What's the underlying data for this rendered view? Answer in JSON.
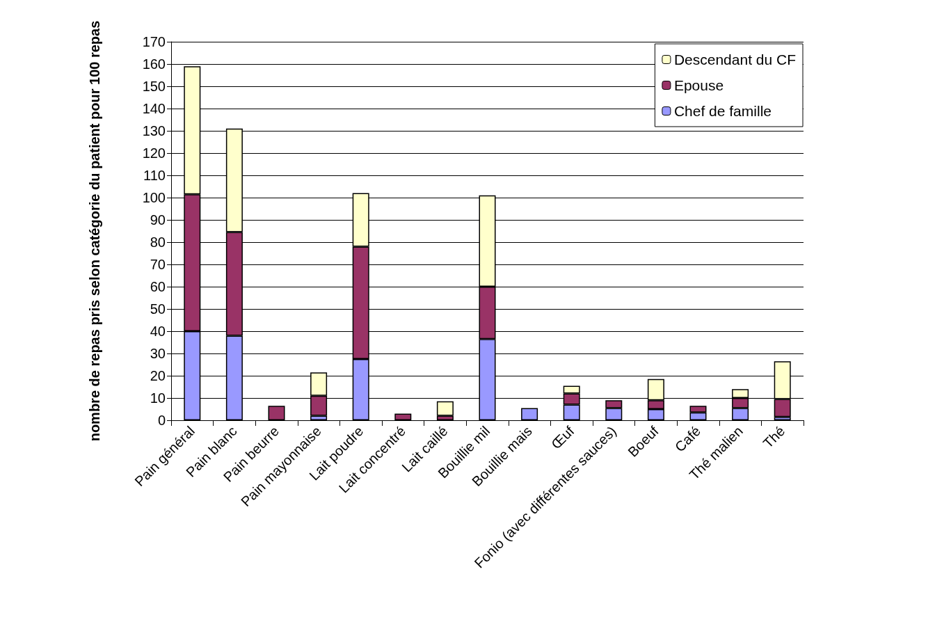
{
  "chart_data": {
    "type": "bar",
    "stacked": true,
    "ylabel": "nombre de repas pris selon catégorie du patient pour 100 repas",
    "categories": [
      "Pain général",
      "Pain blanc",
      "Pain beurre",
      "Pain mayonnaise",
      "Lait poudre",
      "Lait concentré",
      "Lait caillé",
      "Bouillie mil",
      "Bouillie mais",
      "Œuf",
      "Fonio (avec différentes sauces)",
      "Boeuf",
      "Café",
      "Thé malien",
      "Thé"
    ],
    "series": [
      {
        "name": "Chef de famille",
        "color": "#9999ff",
        "values": [
          40,
          38,
          0,
          2,
          27.5,
          0,
          0,
          36.5,
          5.5,
          7,
          5.5,
          5,
          3.5,
          5.5,
          1.5
        ]
      },
      {
        "name": "Epouse",
        "color": "#993366",
        "values": [
          61.5,
          46.5,
          6.5,
          9,
          50.5,
          3,
          2,
          23.5,
          0,
          5,
          3.5,
          4,
          3,
          4.5,
          8
        ]
      },
      {
        "name": "Descendant du CF",
        "color": "#ffffcc",
        "values": [
          57.5,
          46.5,
          0,
          10.5,
          24,
          0,
          6.5,
          41,
          0,
          3.5,
          0,
          9.5,
          0,
          4,
          17
        ]
      }
    ],
    "ylim": [
      0,
      170
    ],
    "yticks": [
      0,
      10,
      20,
      30,
      40,
      50,
      60,
      70,
      80,
      90,
      100,
      110,
      120,
      130,
      140,
      150,
      160,
      170
    ],
    "grid": "y",
    "legend": "top right"
  }
}
